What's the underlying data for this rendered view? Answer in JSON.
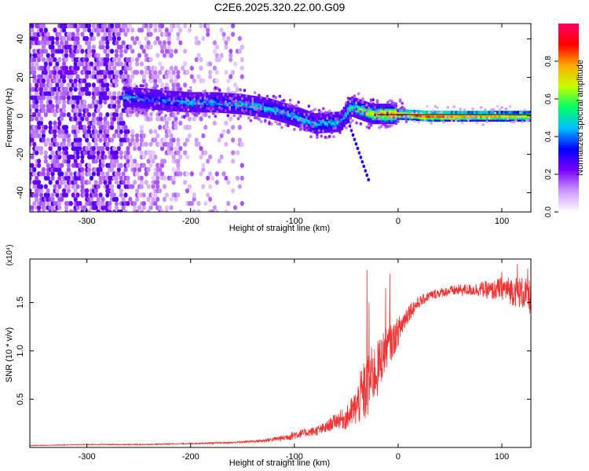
{
  "title": "C2E6.2025.320.22.00.G09",
  "colors": {
    "snr_line": "#ee3333",
    "colormap": [
      "#ffffff",
      "#cc99ff",
      "#7a00ff",
      "#0000ff",
      "#00c0ff",
      "#00ff66",
      "#c8ff00",
      "#ffaa00",
      "#ff0000",
      "#ff0066"
    ]
  },
  "chart_data": [
    {
      "type": "heatmap",
      "xlabel": "Height of straight line (km)",
      "ylabel": "Frequency (Hz)",
      "xlim": [
        -355,
        128
      ],
      "ylim": [
        -50,
        48
      ],
      "x_ticks": [
        -300,
        -200,
        -100,
        0,
        100
      ],
      "x_tick_labels": [
        "-300",
        "-200",
        "-100",
        "0",
        "100"
      ],
      "y_ticks": [
        -40,
        -20,
        0,
        20,
        40
      ],
      "y_tick_labels": [
        "-40",
        "-20",
        "0",
        "20",
        "40"
      ],
      "colorbar": {
        "label": "Normalized spectral amplitude",
        "range": [
          0,
          1
        ],
        "ticks": [
          0.0,
          0.2,
          0.4,
          0.6,
          0.8
        ],
        "tick_labels": [
          "0.0",
          "0.2",
          "0.4",
          "0.6",
          "0.8"
        ]
      },
      "ridge": [
        {
          "x": -265,
          "f": 10,
          "amp": 0.45
        },
        {
          "x": -245,
          "f": 9,
          "amp": 0.4
        },
        {
          "x": -225,
          "f": 8,
          "amp": 0.4
        },
        {
          "x": -200,
          "f": 7,
          "amp": 0.45
        },
        {
          "x": -175,
          "f": 7,
          "amp": 0.45
        },
        {
          "x": -150,
          "f": 6,
          "amp": 0.5
        },
        {
          "x": -125,
          "f": 4,
          "amp": 0.5
        },
        {
          "x": -100,
          "f": 0,
          "amp": 0.5
        },
        {
          "x": -80,
          "f": -4,
          "amp": 0.45
        },
        {
          "x": -55,
          "f": -3,
          "amp": 0.5
        },
        {
          "x": -45,
          "f": 5,
          "amp": 0.55
        },
        {
          "x": -25,
          "f": 1,
          "amp": 0.75
        },
        {
          "x": 0,
          "f": 1,
          "amp": 0.9
        },
        {
          "x": 30,
          "f": 0,
          "amp": 0.9
        },
        {
          "x": 60,
          "f": 0,
          "amp": 0.85
        },
        {
          "x": 90,
          "f": 0,
          "amp": 0.8
        },
        {
          "x": 128,
          "f": 0,
          "amp": 0.75
        }
      ]
    },
    {
      "type": "line",
      "xlabel": "Height of straight line (km)",
      "ylabel": "SNR (10 * v/v)",
      "scale_label": "(x10⁴)",
      "xlim": [
        -355,
        128
      ],
      "ylim": [
        0,
        1.95
      ],
      "x_ticks": [
        -300,
        -200,
        -100,
        0,
        100
      ],
      "x_tick_labels": [
        "-300",
        "-200",
        "-100",
        "0",
        "100"
      ],
      "y_ticks": [
        0.5,
        1.0,
        1.5
      ],
      "y_tick_labels": [
        "0.5",
        "1.0",
        "1.5"
      ],
      "series": [
        {
          "x": [
            -355,
            -300,
            -250,
            -200,
            -160,
            -130,
            -110,
            -100,
            -90,
            -80,
            -70,
            -60,
            -50,
            -40,
            -35,
            -30,
            -25,
            -20,
            -15,
            -10,
            -5,
            0,
            10,
            20,
            30,
            40,
            50,
            60,
            70,
            80,
            90,
            100,
            110,
            120,
            128
          ],
          "y": [
            0.02,
            0.03,
            0.03,
            0.04,
            0.05,
            0.07,
            0.1,
            0.13,
            0.15,
            0.17,
            0.2,
            0.28,
            0.3,
            0.42,
            0.55,
            0.6,
            0.75,
            0.8,
            0.95,
            1.05,
            1.1,
            1.2,
            1.4,
            1.5,
            1.57,
            1.6,
            1.62,
            1.63,
            1.63,
            1.64,
            1.62,
            1.65,
            1.62,
            1.6,
            1.55
          ],
          "noise": [
            0.003,
            0.004,
            0.005,
            0.006,
            0.008,
            0.015,
            0.03,
            0.05,
            0.04,
            0.05,
            0.06,
            0.08,
            0.12,
            0.2,
            0.3,
            0.35,
            0.3,
            0.3,
            0.25,
            0.2,
            0.18,
            0.15,
            0.1,
            0.06,
            0.05,
            0.05,
            0.05,
            0.06,
            0.06,
            0.08,
            0.1,
            0.12,
            0.15,
            0.17,
            0.18
          ],
          "peaks": [
            {
              "x": -30,
              "y": 1.84
            },
            {
              "x": -28,
              "y": 1.5
            },
            {
              "x": -12,
              "y": 1.65
            },
            {
              "x": -8,
              "y": 1.8
            },
            {
              "x": 3,
              "y": 1.2
            },
            {
              "x": 100,
              "y": 1.82
            },
            {
              "x": 115,
              "y": 1.9
            },
            {
              "x": 125,
              "y": 1.85
            }
          ]
        }
      ]
    }
  ]
}
